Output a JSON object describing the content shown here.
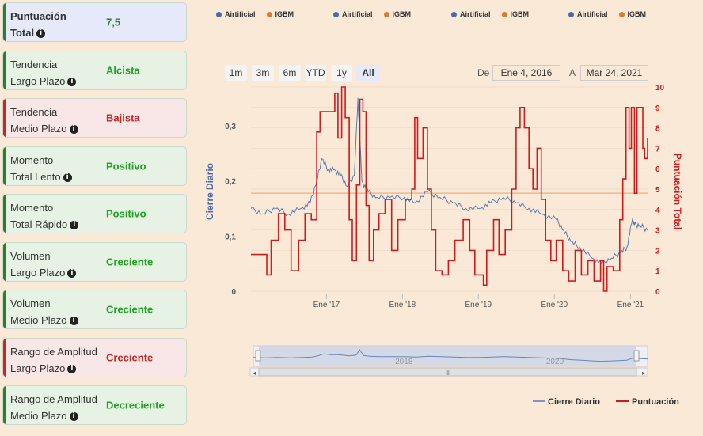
{
  "cards": [
    {
      "label1": "Puntuación",
      "label2": "Total",
      "value": "7,5",
      "bg": "#e6e9f9",
      "bar": "#2e7d32",
      "valColor": "#2e7d32",
      "bold": true
    },
    {
      "label1": "Tendencia",
      "label2": "Largo Plazo",
      "value": "Alcista",
      "bg": "#e5f2e4",
      "bar": "#2e7d32",
      "valColor": "#21a321",
      "bold": false
    },
    {
      "label1": "Tendencia",
      "label2": "Medio Plazo",
      "value": "Bajista",
      "bg": "#f9e6e6",
      "bar": "#c62828",
      "valColor": "#c62828",
      "bold": false
    },
    {
      "label1": "Momento",
      "label2": "Total Lento",
      "value": "Positivo",
      "bg": "#e5f2e4",
      "bar": "#2e7d32",
      "valColor": "#21a321",
      "bold": false
    },
    {
      "label1": "Momento",
      "label2": "Total Rápido",
      "value": "Positivo",
      "bg": "#e5f2e4",
      "bar": "#2e7d32",
      "valColor": "#21a321",
      "bold": false
    },
    {
      "label1": "Volumen",
      "label2": "Largo Plazo",
      "value": "Creciente",
      "bg": "#e5f2e4",
      "bar": "#2e7d32",
      "valColor": "#21a321",
      "bold": false
    },
    {
      "label1": "Volumen",
      "label2": "Medio Plazo",
      "value": "Creciente",
      "bg": "#e5f2e4",
      "bar": "#2e7d32",
      "valColor": "#21a321",
      "bold": false
    },
    {
      "label1": "Rango de Amplitud",
      "label2": "Largo Plazo",
      "value": "Creciente",
      "bg": "#f9e6e6",
      "bar": "#c62828",
      "valColor": "#c62828",
      "bold": false
    },
    {
      "label1": "Rango de Amplitud",
      "label2": "Medio Plazo",
      "value": "Decreciente",
      "bg": "#e5f2e4",
      "bar": "#2e7d32",
      "valColor": "#21a321",
      "bold": false
    }
  ],
  "info_icon": "info-circle-icon",
  "top_legend": [
    {
      "a": "Airtificial",
      "b": "IGBM"
    },
    {
      "a": "Airtificial",
      "b": "IGBM"
    },
    {
      "a": "Airtificial",
      "b": "IGBM"
    },
    {
      "a": "Airtificial",
      "b": "IGBM"
    }
  ],
  "colors": {
    "airtificial": "#4a6aa8",
    "igbm": "#e07b2a",
    "price": "#5a7bb0",
    "score": "#d11a1a",
    "threshold": "#f0b98a"
  },
  "range_buttons": [
    "1m",
    "3m",
    "6m",
    "YTD",
    "1y",
    "All"
  ],
  "range_selected": "All",
  "date_from_label": "De",
  "date_from": "Ene 4, 2016",
  "date_to_label": "A",
  "date_to": "Mar 24, 2021",
  "navigator": {
    "year_labels": [
      "2018",
      "2020"
    ],
    "handle": "III"
  },
  "bottom_legend": [
    {
      "name": "Cierre Diario"
    },
    {
      "name": "Puntuación"
    }
  ],
  "chart_data": {
    "type": "line",
    "x_labels": [
      "Ene '17",
      "Ene '18",
      "Ene '19",
      "Ene '20",
      "Ene '21"
    ],
    "x_range": [
      "2016-01-04",
      "2021-03-24"
    ],
    "ylabel": "Cierre Diario",
    "ylabel_right": "Puntuación Total",
    "y_left_ticks": [
      "0",
      "0,1",
      "0,2",
      "0,3"
    ],
    "y_left_range": [
      0,
      0.37
    ],
    "y_right_ticks": [
      "0",
      "1",
      "2",
      "3",
      "4",
      "5",
      "6",
      "7",
      "8",
      "9",
      "10"
    ],
    "y_right_range": [
      0,
      10
    ],
    "threshold_right": 4.8,
    "series": [
      {
        "name": "Cierre Diario",
        "axis": "left",
        "points": [
          [
            "2016-01-04",
            0.15
          ],
          [
            "2016-03-01",
            0.14
          ],
          [
            "2016-05-01",
            0.15
          ],
          [
            "2016-07-01",
            0.14
          ],
          [
            "2016-09-01",
            0.15
          ],
          [
            "2016-10-15",
            0.16
          ],
          [
            "2016-11-15",
            0.2
          ],
          [
            "2016-12-10",
            0.24
          ],
          [
            "2017-01-10",
            0.22
          ],
          [
            "2017-02-10",
            0.22
          ],
          [
            "2017-03-10",
            0.21
          ],
          [
            "2017-04-10",
            0.19
          ],
          [
            "2017-05-15",
            0.21
          ],
          [
            "2017-06-01",
            0.35
          ],
          [
            "2017-06-20",
            0.2
          ],
          [
            "2017-07-20",
            0.18
          ],
          [
            "2017-09-01",
            0.17
          ],
          [
            "2017-11-01",
            0.17
          ],
          [
            "2018-01-10",
            0.17
          ],
          [
            "2018-03-01",
            0.16
          ],
          [
            "2018-05-01",
            0.18
          ],
          [
            "2018-07-01",
            0.17
          ],
          [
            "2018-09-01",
            0.16
          ],
          [
            "2018-11-01",
            0.15
          ],
          [
            "2019-01-10",
            0.15
          ],
          [
            "2019-03-01",
            0.16
          ],
          [
            "2019-05-01",
            0.17
          ],
          [
            "2019-07-01",
            0.16
          ],
          [
            "2019-09-01",
            0.15
          ],
          [
            "2019-11-01",
            0.14
          ],
          [
            "2020-01-10",
            0.13
          ],
          [
            "2020-02-15",
            0.11
          ],
          [
            "2020-03-20",
            0.09
          ],
          [
            "2020-05-01",
            0.08
          ],
          [
            "2020-07-01",
            0.06
          ],
          [
            "2020-08-15",
            0.05
          ],
          [
            "2020-10-01",
            0.06
          ],
          [
            "2020-11-15",
            0.07
          ],
          [
            "2020-12-15",
            0.08
          ],
          [
            "2021-01-10",
            0.13
          ],
          [
            "2021-01-20",
            0.12
          ],
          [
            "2021-02-15",
            0.12
          ],
          [
            "2021-03-24",
            0.11
          ]
        ]
      },
      {
        "name": "Puntuación",
        "axis": "right",
        "points": [
          [
            "2016-01-04",
            1.8
          ],
          [
            "2016-03-15",
            1.8
          ],
          [
            "2016-03-20",
            0.8
          ],
          [
            "2016-04-10",
            2.5
          ],
          [
            "2016-05-15",
            3.8
          ],
          [
            "2016-06-15",
            3.0
          ],
          [
            "2016-07-15",
            1.0
          ],
          [
            "2016-08-20",
            2.5
          ],
          [
            "2016-09-20",
            3.8
          ],
          [
            "2016-10-20",
            3.5
          ],
          [
            "2016-11-15",
            7.8
          ],
          [
            "2016-12-01",
            8.8
          ],
          [
            "2017-01-15",
            8.8
          ],
          [
            "2017-02-10",
            9.7
          ],
          [
            "2017-02-25",
            7.5
          ],
          [
            "2017-03-15",
            10.0
          ],
          [
            "2017-04-01",
            8.5
          ],
          [
            "2017-04-20",
            3.5
          ],
          [
            "2017-05-05",
            1.5
          ],
          [
            "2017-05-25",
            5.2
          ],
          [
            "2017-06-10",
            9.4
          ],
          [
            "2017-06-25",
            8.8
          ],
          [
            "2017-07-10",
            4.2
          ],
          [
            "2017-07-25",
            1.5
          ],
          [
            "2017-08-15",
            3.0
          ],
          [
            "2017-09-10",
            3.8
          ],
          [
            "2017-10-10",
            4.5
          ],
          [
            "2017-11-10",
            2.0
          ],
          [
            "2017-12-10",
            3.5
          ],
          [
            "2018-01-15",
            4.5
          ],
          [
            "2018-02-15",
            5.0
          ],
          [
            "2018-03-01",
            8.5
          ],
          [
            "2018-03-15",
            6.5
          ],
          [
            "2018-04-10",
            8.0
          ],
          [
            "2018-05-01",
            5.0
          ],
          [
            "2018-05-20",
            3.0
          ],
          [
            "2018-06-10",
            1.0
          ],
          [
            "2018-07-10",
            0.8
          ],
          [
            "2018-08-10",
            1.5
          ],
          [
            "2018-09-10",
            2.5
          ],
          [
            "2018-10-20",
            3.5
          ],
          [
            "2018-11-20",
            2.0
          ],
          [
            "2018-12-15",
            0.8
          ],
          [
            "2019-01-10",
            0.8
          ],
          [
            "2019-01-25",
            0.3
          ],
          [
            "2019-02-10",
            2.0
          ],
          [
            "2019-03-15",
            3.5
          ],
          [
            "2019-04-10",
            1.8
          ],
          [
            "2019-05-10",
            3.0
          ],
          [
            "2019-06-10",
            5.0
          ],
          [
            "2019-07-01",
            8.0
          ],
          [
            "2019-07-20",
            9.0
          ],
          [
            "2019-08-10",
            8.0
          ],
          [
            "2019-09-01",
            6.0
          ],
          [
            "2019-09-20",
            5.0
          ],
          [
            "2019-10-10",
            7.0
          ],
          [
            "2019-10-30",
            4.5
          ],
          [
            "2019-11-20",
            2.5
          ],
          [
            "2019-12-15",
            1.5
          ],
          [
            "2020-01-10",
            2.5
          ],
          [
            "2020-02-10",
            1.0
          ],
          [
            "2020-03-10",
            0.5
          ],
          [
            "2020-04-10",
            2.0
          ],
          [
            "2020-05-10",
            0.8
          ],
          [
            "2020-06-10",
            1.5
          ],
          [
            "2020-07-10",
            0.5
          ],
          [
            "2020-08-10",
            1.5
          ],
          [
            "2020-08-25",
            0.0
          ],
          [
            "2020-09-10",
            1.2
          ],
          [
            "2020-10-10",
            1.0
          ],
          [
            "2020-11-10",
            3.5
          ],
          [
            "2020-11-25",
            5.5
          ],
          [
            "2020-12-10",
            9.0
          ],
          [
            "2020-12-25",
            7.0
          ],
          [
            "2021-01-05",
            9.0
          ],
          [
            "2021-01-20",
            4.8
          ],
          [
            "2021-02-01",
            9.0
          ],
          [
            "2021-02-25",
            9.0
          ],
          [
            "2021-03-01",
            7.0
          ],
          [
            "2021-03-10",
            6.5
          ],
          [
            "2021-03-24",
            7.5
          ]
        ]
      }
    ],
    "grid": true,
    "legend": "bottom-right"
  }
}
